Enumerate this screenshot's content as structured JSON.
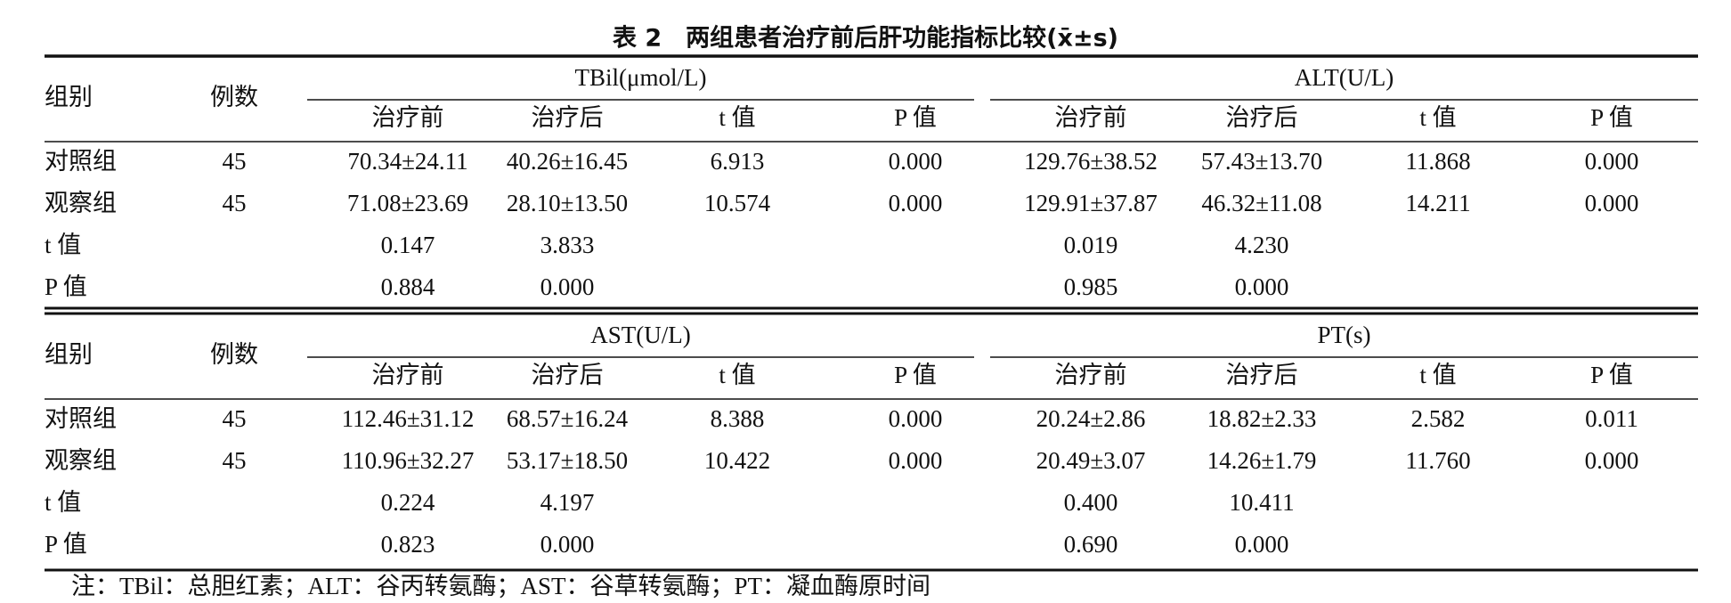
{
  "title": "表 2　两组患者治疗前后肝功能指标比较(x̄±s)",
  "blocks": [
    {
      "header": {
        "group": "组别",
        "count": "例数",
        "metrics": [
          {
            "name": "TBil(μmol/L)",
            "columns": [
              "治疗前",
              "治疗后",
              "t 值",
              "P 值"
            ]
          },
          {
            "name": "ALT(U/L)",
            "columns": [
              "治疗前",
              "治疗后",
              "t 值",
              "P 值"
            ]
          }
        ]
      },
      "rows": [
        [
          "对照组",
          "45",
          "70.34±24.11",
          "40.26±16.45",
          "6.913",
          "0.000",
          "129.76±38.52",
          "57.43±13.70",
          "11.868",
          "0.000"
        ],
        [
          "观察组",
          "45",
          "71.08±23.69",
          "28.10±13.50",
          "10.574",
          "0.000",
          "129.91±37.87",
          "46.32±11.08",
          "14.211",
          "0.000"
        ],
        [
          "t 值",
          null,
          "0.147",
          "3.833",
          null,
          null,
          "0.019",
          "4.230",
          null,
          null
        ],
        [
          "P 值",
          null,
          "0.884",
          "0.000",
          null,
          null,
          "0.985",
          "0.000",
          null,
          null
        ]
      ]
    },
    {
      "header": {
        "group": "组别",
        "count": "例数",
        "metrics": [
          {
            "name": "AST(U/L)",
            "columns": [
              "治疗前",
              "治疗后",
              "t 值",
              "P 值"
            ]
          },
          {
            "name": "PT(s)",
            "columns": [
              "治疗前",
              "治疗后",
              "t 值",
              "P 值"
            ]
          }
        ]
      },
      "rows": [
        [
          "对照组",
          "45",
          "112.46±31.12",
          "68.57±16.24",
          "8.388",
          "0.000",
          "20.24±2.86",
          "18.82±2.33",
          "2.582",
          "0.011"
        ],
        [
          "观察组",
          "45",
          "110.96±32.27",
          "53.17±18.50",
          "10.422",
          "0.000",
          "20.49±3.07",
          "14.26±1.79",
          "11.760",
          "0.000"
        ],
        [
          "t 值",
          null,
          "0.224",
          "4.197",
          null,
          null,
          "0.400",
          "10.411",
          null,
          null
        ],
        [
          "P 值",
          null,
          "0.823",
          "0.000",
          null,
          null,
          "0.690",
          "0.000",
          null,
          null
        ]
      ]
    }
  ],
  "note": "注：TBil：总胆红素；ALT：谷丙转氨酶；AST：谷草转氨酶；PT：凝血酶原时间"
}
